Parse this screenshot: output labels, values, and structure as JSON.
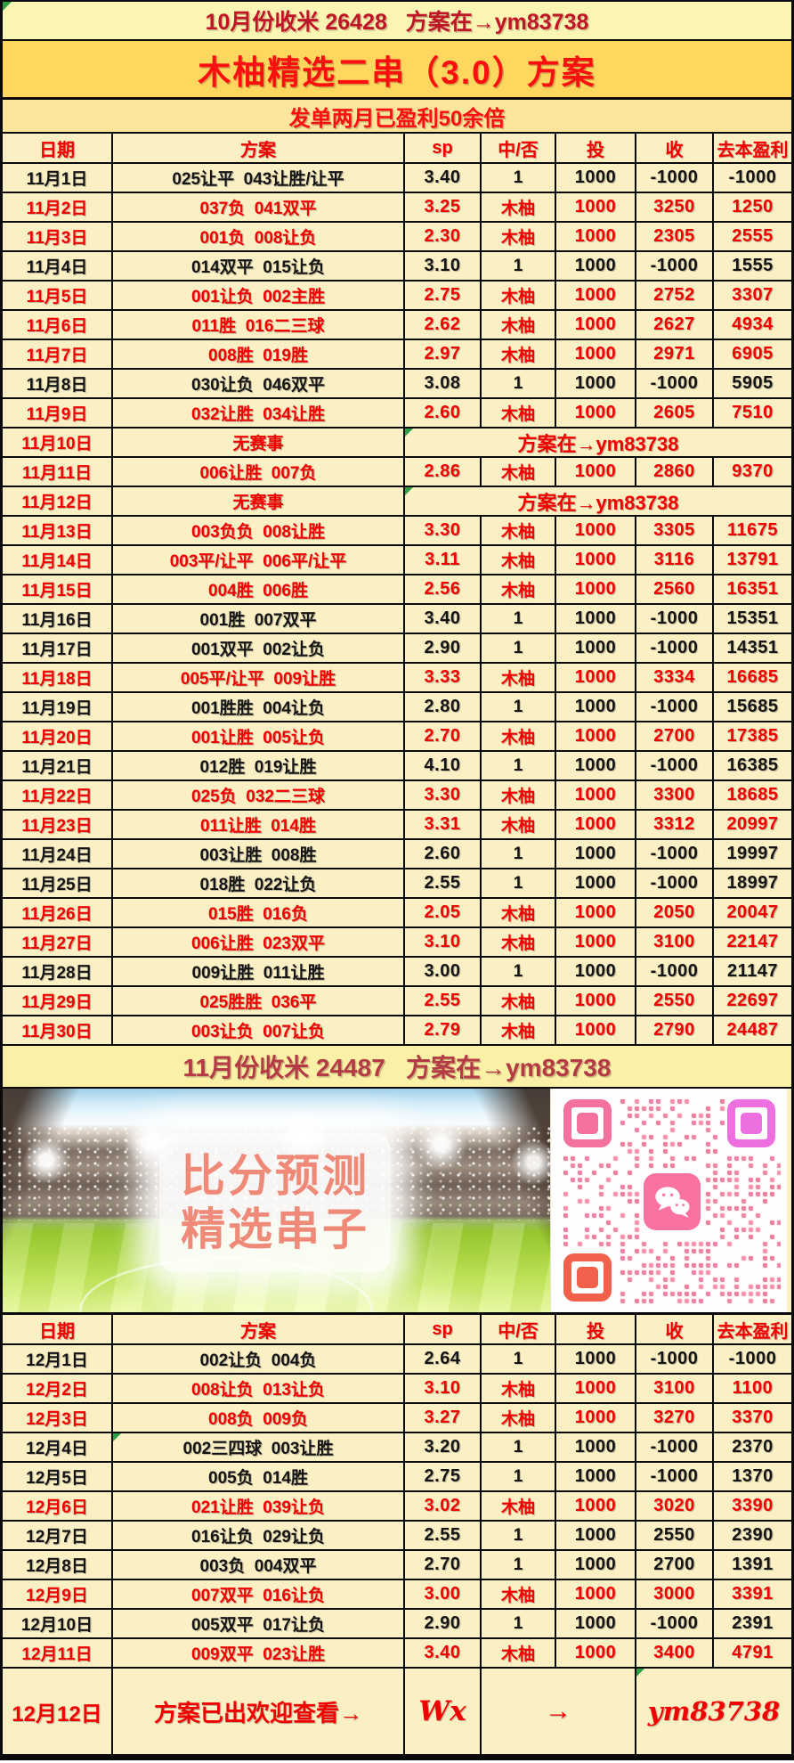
{
  "banners": {
    "october_summary": "10月份收米 26428   方案在→ym83738",
    "title": "木柚精选二串（3.0）方案",
    "subtitle": "发单两月已盈利50余倍",
    "november_summary": "11月份收米 24487   方案在→ym83738"
  },
  "columns": [
    "日期",
    "方案",
    "sp",
    "中/否",
    "投",
    "收",
    "去本盈利"
  ],
  "november_rows": [
    {
      "date": "11月1日",
      "plan": "025让平  043让胜/让平",
      "sp": "3.40",
      "result": "1",
      "stake": "1000",
      "income": "-1000",
      "profit": "-1000",
      "win": false
    },
    {
      "date": "11月2日",
      "plan": "037负  041双平",
      "sp": "3.25",
      "result": "木柚",
      "stake": "1000",
      "income": "3250",
      "profit": "1250",
      "win": true
    },
    {
      "date": "11月3日",
      "plan": "001负  008让负",
      "sp": "2.30",
      "result": "木柚",
      "stake": "1000",
      "income": "2305",
      "profit": "2555",
      "win": true
    },
    {
      "date": "11月4日",
      "plan": "014双平  015让负",
      "sp": "3.10",
      "result": "1",
      "stake": "1000",
      "income": "-1000",
      "profit": "1555",
      "win": false
    },
    {
      "date": "11月5日",
      "plan": "001让负  002主胜",
      "sp": "2.75",
      "result": "木柚",
      "stake": "1000",
      "income": "2752",
      "profit": "3307",
      "win": true
    },
    {
      "date": "11月6日",
      "plan": "011胜  016二三球",
      "sp": "2.62",
      "result": "木柚",
      "stake": "1000",
      "income": "2627",
      "profit": "4934",
      "win": true
    },
    {
      "date": "11月7日",
      "plan": "008胜  019胜",
      "sp": "2.97",
      "result": "木柚",
      "stake": "1000",
      "income": "2971",
      "profit": "6905",
      "win": true
    },
    {
      "date": "11月8日",
      "plan": "030让负  046双平",
      "sp": "3.08",
      "result": "1",
      "stake": "1000",
      "income": "-1000",
      "profit": "5905",
      "win": false
    },
    {
      "date": "11月9日",
      "plan": "032让胜  034让胜",
      "sp": "2.60",
      "result": "木柚",
      "stake": "1000",
      "income": "2605",
      "profit": "7510",
      "win": true
    },
    {
      "date": "11月10日",
      "plan": "无赛事",
      "note": "方案在→ym83738",
      "win": true,
      "no_race": true
    },
    {
      "date": "11月11日",
      "plan": "006让胜  007负",
      "sp": "2.86",
      "result": "木柚",
      "stake": "1000",
      "income": "2860",
      "profit": "9370",
      "win": true
    },
    {
      "date": "11月12日",
      "plan": "无赛事",
      "note": "方案在→ym83738",
      "win": true,
      "no_race": true
    },
    {
      "date": "11月13日",
      "plan": "003负负  008让胜",
      "sp": "3.30",
      "result": "木柚",
      "stake": "1000",
      "income": "3305",
      "profit": "11675",
      "win": true
    },
    {
      "date": "11月14日",
      "plan": "003平/让平  006平/让平",
      "sp": "3.11",
      "result": "木柚",
      "stake": "1000",
      "income": "3116",
      "profit": "13791",
      "win": true
    },
    {
      "date": "11月15日",
      "plan": "004胜  006胜",
      "sp": "2.56",
      "result": "木柚",
      "stake": "1000",
      "income": "2560",
      "profit": "16351",
      "win": true
    },
    {
      "date": "11月16日",
      "plan": "001胜  007双平",
      "sp": "3.40",
      "result": "1",
      "stake": "1000",
      "income": "-1000",
      "profit": "15351",
      "win": false
    },
    {
      "date": "11月17日",
      "plan": "001双平  002让负",
      "sp": "2.90",
      "result": "1",
      "stake": "1000",
      "income": "-1000",
      "profit": "14351",
      "win": false
    },
    {
      "date": "11月18日",
      "plan": "005平/让平  009让胜",
      "sp": "3.33",
      "result": "木柚",
      "stake": "1000",
      "income": "3334",
      "profit": "16685",
      "win": true
    },
    {
      "date": "11月19日",
      "plan": "001胜胜  004让负",
      "sp": "2.80",
      "result": "1",
      "stake": "1000",
      "income": "-1000",
      "profit": "15685",
      "win": false
    },
    {
      "date": "11月20日",
      "plan": "001让胜  005让负",
      "sp": "2.70",
      "result": "木柚",
      "stake": "1000",
      "income": "2700",
      "profit": "17385",
      "win": true
    },
    {
      "date": "11月21日",
      "plan": "012胜  019让胜",
      "sp": "4.10",
      "result": "1",
      "stake": "1000",
      "income": "-1000",
      "profit": "16385",
      "win": false
    },
    {
      "date": "11月22日",
      "plan": "025负  032二三球",
      "sp": "3.30",
      "result": "木柚",
      "stake": "1000",
      "income": "3300",
      "profit": "18685",
      "win": true
    },
    {
      "date": "11月23日",
      "plan": "011让胜  014胜",
      "sp": "3.31",
      "result": "木柚",
      "stake": "1000",
      "income": "3312",
      "profit": "20997",
      "win": true
    },
    {
      "date": "11月24日",
      "plan": "003让胜  008胜",
      "sp": "2.60",
      "result": "1",
      "stake": "1000",
      "income": "-1000",
      "profit": "19997",
      "win": false
    },
    {
      "date": "11月25日",
      "plan": "018胜  022让负",
      "sp": "2.55",
      "result": "1",
      "stake": "1000",
      "income": "-1000",
      "profit": "18997",
      "win": false
    },
    {
      "date": "11月26日",
      "plan": "015胜  016负",
      "sp": "2.05",
      "result": "木柚",
      "stake": "1000",
      "income": "2050",
      "profit": "20047",
      "win": true
    },
    {
      "date": "11月27日",
      "plan": "006让胜  023双平",
      "sp": "3.10",
      "result": "木柚",
      "stake": "1000",
      "income": "3100",
      "profit": "22147",
      "win": true
    },
    {
      "date": "11月28日",
      "plan": "009让胜  011让胜",
      "sp": "3.00",
      "result": "1",
      "stake": "1000",
      "income": "-1000",
      "profit": "21147",
      "win": false
    },
    {
      "date": "11月29日",
      "plan": "025胜胜  036平",
      "sp": "2.55",
      "result": "木柚",
      "stake": "1000",
      "income": "2550",
      "profit": "22697",
      "win": true
    },
    {
      "date": "11月30日",
      "plan": "003让负  007让负",
      "sp": "2.79",
      "result": "木柚",
      "stake": "1000",
      "income": "2790",
      "profit": "24487",
      "win": true
    }
  ],
  "december_rows": [
    {
      "date": "12月1日",
      "plan": "002让负  004负",
      "sp": "2.64",
      "result": "1",
      "stake": "1000",
      "income": "-1000",
      "profit": "-1000",
      "win": false
    },
    {
      "date": "12月2日",
      "plan": "008让负  013让负",
      "sp": "3.10",
      "result": "木柚",
      "stake": "1000",
      "income": "3100",
      "profit": "1100",
      "win": true
    },
    {
      "date": "12月3日",
      "plan": "008负  009负",
      "sp": "3.27",
      "result": "木柚",
      "stake": "1000",
      "income": "3270",
      "profit": "3370",
      "win": true
    },
    {
      "date": "12月4日",
      "plan": "002三四球  003让胜",
      "sp": "3.20",
      "result": "1",
      "stake": "1000",
      "income": "-1000",
      "profit": "2370",
      "win": false,
      "tri": true
    },
    {
      "date": "12月5日",
      "plan": "005负  014胜",
      "sp": "2.75",
      "result": "1",
      "stake": "1000",
      "income": "-1000",
      "profit": "1370",
      "win": false
    },
    {
      "date": "12月6日",
      "plan": "021让胜  039让负",
      "sp": "3.02",
      "result": "木柚",
      "stake": "1000",
      "income": "3020",
      "profit": "3390",
      "win": true
    },
    {
      "date": "12月7日",
      "plan": "016让负  029让负",
      "sp": "2.55",
      "result": "1",
      "stake": "1000",
      "income": "2550",
      "profit": "2390",
      "win": false
    },
    {
      "date": "12月8日",
      "plan": "003负  004双平",
      "sp": "2.70",
      "result": "1",
      "stake": "1000",
      "income": "2700",
      "profit": "1391",
      "win": false
    },
    {
      "date": "12月9日",
      "plan": "007双平  016让负",
      "sp": "3.00",
      "result": "木柚",
      "stake": "1000",
      "income": "3000",
      "profit": "3391",
      "win": true
    },
    {
      "date": "12月10日",
      "plan": "005双平  017让负",
      "sp": "2.90",
      "result": "1",
      "stake": "1000",
      "income": "-1000",
      "profit": "2391",
      "win": false
    },
    {
      "date": "12月11日",
      "plan": "009双平  023让胜",
      "sp": "3.40",
      "result": "木柚",
      "stake": "1000",
      "income": "3400",
      "profit": "4791",
      "win": true
    },
    {
      "date": "12月12日",
      "plan": "方案已出欢迎查看→",
      "sp": "Wx",
      "result": "→",
      "income": "ym83738",
      "win": true,
      "final": true
    }
  ],
  "promo": {
    "caption_line1": "比分预测",
    "caption_line2": "精选串子",
    "qr_meaning": "wechat-contact-qr"
  },
  "colors": {
    "gold_banner": "#fdd75e",
    "light_gold_banner": "#fde59b",
    "cream_banner": "#fbf5b4",
    "row_background": "#fbefc4",
    "win_red": "#f20000",
    "loss_black": "#141414",
    "crimson_note": "#b5323c",
    "qr_pink": "#f4709e",
    "qr_orchid": "#ee6fe0",
    "qr_coral": "#f1604a"
  }
}
